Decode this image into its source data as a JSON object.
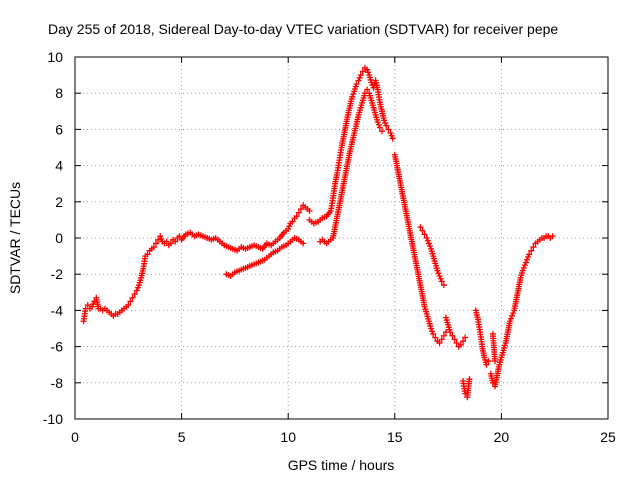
{
  "chart_data": {
    "type": "scatter",
    "title": "Day 255 of 2018, Sidereal Day-to-day VTEC variation (SDTVAR) for receiver pepe",
    "xlabel": "GPS time / hours",
    "ylabel": "SDTVAR / TECUs",
    "xlim": [
      0,
      25
    ],
    "ylim": [
      -10,
      10
    ],
    "x_ticks": [
      "0",
      "5",
      "10",
      "15",
      "20",
      "25"
    ],
    "y_ticks": [
      "-10",
      "-8",
      "-6",
      "-4",
      "-2",
      "0",
      "2",
      "4",
      "6",
      "8",
      "10"
    ],
    "grid": true,
    "marker": "plus",
    "series_color": "#ff0000",
    "series": [
      {
        "segments": [
          {
            "x": [
              0.4,
              0.5,
              0.6,
              0.7,
              0.8,
              0.9,
              1.0,
              1.1,
              1.2,
              1.3,
              1.4,
              1.5,
              1.6,
              1.7,
              1.8,
              1.9,
              2.0,
              2.1,
              2.2,
              2.3,
              2.4,
              2.5,
              2.6,
              2.7,
              2.8,
              2.9,
              3.0,
              3.1,
              3.2,
              3.3,
              3.4,
              3.5,
              3.6,
              3.7,
              3.8,
              3.9,
              4.0,
              4.1,
              4.2,
              4.3,
              4.4,
              4.5,
              4.6,
              4.7,
              4.8,
              4.9,
              5.0,
              5.2,
              5.4,
              5.6,
              5.8,
              6.0,
              6.2,
              6.4,
              6.6,
              6.8,
              7.0,
              7.2,
              7.4,
              7.6,
              7.8,
              8.0,
              8.2,
              8.4,
              8.6,
              8.8,
              9.0,
              9.2,
              9.4,
              9.6,
              9.8,
              10.0,
              10.1,
              10.2,
              10.3,
              10.4,
              10.5,
              10.6,
              10.7,
              10.8,
              10.9,
              11.0
            ],
            "y": [
              -4.6,
              -3.9,
              -3.7,
              -3.9,
              -3.8,
              -3.5,
              -3.3,
              -3.9,
              -3.9,
              -4.0,
              -3.9,
              -4.0,
              -4.1,
              -4.2,
              -4.3,
              -4.2,
              -4.2,
              -4.1,
              -4.0,
              -3.9,
              -3.8,
              -3.7,
              -3.5,
              -3.3,
              -3.1,
              -2.9,
              -2.6,
              -2.2,
              -1.7,
              -1.0,
              -0.9,
              -0.7,
              -0.6,
              -0.5,
              -0.3,
              -0.1,
              0.1,
              -0.2,
              -0.3,
              -0.2,
              -0.4,
              -0.3,
              -0.1,
              -0.2,
              0.0,
              0.1,
              -0.1,
              0.2,
              0.3,
              0.1,
              0.2,
              0.1,
              0.0,
              -0.1,
              0.0,
              -0.2,
              -0.4,
              -0.5,
              -0.6,
              -0.7,
              -0.5,
              -0.6,
              -0.5,
              -0.4,
              -0.5,
              -0.6,
              -0.3,
              -0.4,
              -0.2,
              0.0,
              0.3,
              0.5,
              0.8,
              0.9,
              1.1,
              1.2,
              1.4,
              1.6,
              1.8,
              1.7,
              1.6,
              1.5
            ]
          },
          {
            "x": [
              7.1,
              7.3,
              7.5,
              7.7,
              7.9,
              8.1,
              8.3,
              8.5,
              8.7,
              8.9,
              9.1,
              9.3,
              9.5,
              9.7,
              9.9,
              10.1,
              10.3,
              10.5,
              10.7
            ],
            "y": [
              -2.0,
              -2.1,
              -1.9,
              -1.8,
              -1.7,
              -1.6,
              -1.5,
              -1.4,
              -1.3,
              -1.2,
              -1.0,
              -0.8,
              -0.7,
              -0.5,
              -0.4,
              -0.2,
              0.0,
              -0.1,
              -0.3
            ]
          },
          {
            "x": [
              11.0,
              11.2,
              11.4,
              11.6,
              11.8,
              12.0,
              12.1,
              12.2,
              12.3,
              12.4,
              12.5,
              12.6,
              12.7,
              12.8,
              12.9,
              13.0,
              13.1,
              13.2,
              13.3,
              13.4,
              13.5,
              13.6,
              13.7,
              13.8,
              13.9,
              14.0,
              14.1,
              14.2,
              14.3,
              14.4,
              14.5,
              14.6,
              14.7,
              14.8,
              14.9
            ],
            "y": [
              1.0,
              0.8,
              0.9,
              1.1,
              1.2,
              1.5,
              2.2,
              3.0,
              3.6,
              4.3,
              5.0,
              5.6,
              6.2,
              6.8,
              7.3,
              7.8,
              8.1,
              8.5,
              8.7,
              9.0,
              9.2,
              9.4,
              9.3,
              9.0,
              8.6,
              8.3,
              8.7,
              8.2,
              7.5,
              7.0,
              6.5,
              6.2,
              6.0,
              5.8,
              5.5
            ]
          },
          {
            "x": [
              11.5,
              11.6,
              11.7,
              11.8,
              11.9,
              12.0,
              12.1,
              12.2,
              12.3,
              12.4,
              12.5,
              12.6,
              12.7,
              12.8,
              12.9,
              13.0,
              13.1,
              13.2,
              13.3,
              13.4,
              13.5,
              13.6,
              13.7,
              13.8,
              13.9,
              14.0,
              14.1,
              14.2,
              14.3,
              14.4
            ],
            "y": [
              -0.2,
              -0.1,
              -0.2,
              -0.3,
              -0.2,
              -0.1,
              0.0,
              0.6,
              1.2,
              1.8,
              2.4,
              3.0,
              3.6,
              4.2,
              4.8,
              5.3,
              5.8,
              6.3,
              6.8,
              7.2,
              7.6,
              8.0,
              8.2,
              8.0,
              7.6,
              7.2,
              6.8,
              6.4,
              6.1,
              5.9
            ]
          },
          {
            "x": [
              15.0,
              15.1,
              15.2,
              15.3,
              15.4,
              15.5,
              15.6,
              15.7,
              15.8,
              15.9,
              16.0,
              16.1,
              16.2,
              16.3,
              16.4,
              16.5,
              16.6,
              16.7,
              16.8,
              16.9,
              17.0,
              17.1,
              17.2,
              17.3,
              17.4
            ],
            "y": [
              4.6,
              4.0,
              3.4,
              2.8,
              2.2,
              1.6,
              1.0,
              0.4,
              -0.2,
              -0.8,
              -1.4,
              -2.0,
              -2.6,
              -3.2,
              -3.8,
              -4.2,
              -4.6,
              -5.0,
              -5.3,
              -5.5,
              -5.7,
              -5.8,
              -5.6,
              -5.4,
              -5.2
            ]
          },
          {
            "x": [
              16.2,
              16.3,
              16.4,
              16.5,
              16.6,
              16.7,
              16.8,
              16.9,
              17.0,
              17.1,
              17.2,
              17.3
            ],
            "y": [
              0.6,
              0.4,
              0.2,
              0.0,
              -0.3,
              -0.6,
              -1.0,
              -1.4,
              -1.8,
              -2.1,
              -2.4,
              -2.6
            ]
          },
          {
            "x": [
              17.4,
              17.5,
              17.6,
              17.7,
              17.8,
              17.9,
              18.0,
              18.1,
              18.2,
              18.3
            ],
            "y": [
              -4.4,
              -4.8,
              -5.2,
              -5.4,
              -5.6,
              -5.8,
              -6.0,
              -5.9,
              -5.7,
              -5.5
            ]
          },
          {
            "x": [
              18.2,
              18.3,
              18.4,
              18.5
            ],
            "y": [
              -7.9,
              -8.6,
              -8.8,
              -7.8
            ]
          },
          {
            "x": [
              18.8,
              18.9,
              19.0,
              19.1,
              19.2,
              19.3,
              19.4
            ],
            "y": [
              -4.0,
              -4.5,
              -5.2,
              -6.0,
              -6.6,
              -7.0,
              -6.8
            ]
          },
          {
            "x": [
              19.5,
              19.6,
              19.7,
              19.8,
              19.9,
              20.0,
              20.1,
              20.2,
              20.3,
              20.4,
              20.5,
              20.6,
              20.7,
              20.8,
              20.9,
              21.0,
              21.1,
              21.2,
              21.3,
              21.4,
              21.5,
              21.6,
              21.7,
              21.8,
              21.9,
              22.0,
              22.1,
              22.2,
              22.3,
              22.4
            ],
            "y": [
              -7.5,
              -8.0,
              -8.2,
              -7.6,
              -7.0,
              -6.6,
              -6.2,
              -5.8,
              -5.2,
              -4.6,
              -4.3,
              -4.0,
              -3.4,
              -2.8,
              -2.2,
              -1.8,
              -1.5,
              -1.2,
              -0.9,
              -0.7,
              -0.5,
              -0.3,
              -0.2,
              -0.1,
              0.0,
              0.0,
              0.1,
              0.1,
              0.0,
              0.1
            ]
          },
          {
            "x": [
              19.6,
              19.7
            ],
            "y": [
              -5.3,
              -6.8
            ]
          }
        ]
      }
    ]
  }
}
